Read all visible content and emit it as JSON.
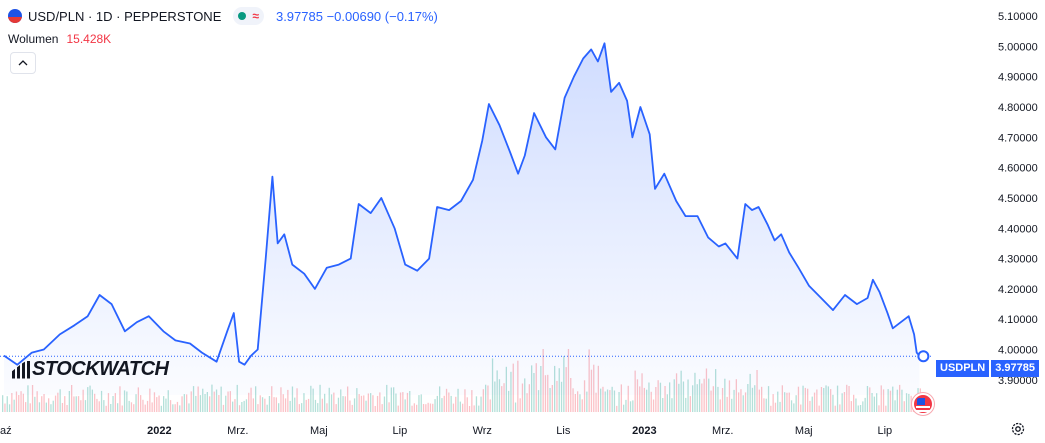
{
  "header": {
    "symbol_line": "USD/PLN · 1D · PEPPERSTONE",
    "approx_icon": "≈",
    "quote": "3.97785 −0.00690 (−0.17%)"
  },
  "volume": {
    "label": "Wolumen",
    "value": "15.428K"
  },
  "collapse_icon": "chevron-up-icon",
  "watermark": "STOCKWATCH",
  "price_tag": {
    "symbol": "USDPLN",
    "price": "3.97785"
  },
  "colors": {
    "line": "#2962ff",
    "fill": "#2962ff",
    "vol_up": "#089981",
    "vol_down": "#f23645",
    "axis_text": "#131722"
  },
  "chart_data": {
    "type": "area",
    "title": "",
    "xlabel": "",
    "ylabel": "",
    "ylim": [
      3.85,
      5.12
    ],
    "y_ticks": [
      "5.10000",
      "5.00000",
      "4.90000",
      "4.80000",
      "4.70000",
      "4.60000",
      "4.50000",
      "4.40000",
      "4.30000",
      "4.20000",
      "4.10000",
      "4.00000",
      "3.90000"
    ],
    "x_ticks": [
      "aź",
      "2022",
      "Mrz.",
      "Maj",
      "Lip",
      "Wrz",
      "Lis",
      "2023",
      "Mrz.",
      "Maj",
      "Lip"
    ],
    "x_tick_dates": [
      "2021-10-01",
      "2022-01-01",
      "2022-03-01",
      "2022-05-01",
      "2022-07-01",
      "2022-09-01",
      "2022-11-01",
      "2023-01-01",
      "2023-03-01",
      "2023-05-01",
      "2023-07-01"
    ],
    "series": [
      {
        "name": "USDPLN",
        "points": [
          [
            "2021-09-06",
            3.98
          ],
          [
            "2021-09-16",
            3.95
          ],
          [
            "2021-09-27",
            3.99
          ],
          [
            "2021-10-06",
            4.0
          ],
          [
            "2021-10-18",
            4.05
          ],
          [
            "2021-10-29",
            4.08
          ],
          [
            "2021-11-08",
            4.11
          ],
          [
            "2021-11-17",
            4.18
          ],
          [
            "2021-11-26",
            4.15
          ],
          [
            "2021-12-06",
            4.06
          ],
          [
            "2021-12-15",
            4.09
          ],
          [
            "2021-12-24",
            4.11
          ],
          [
            "2022-01-04",
            4.06
          ],
          [
            "2022-01-13",
            4.03
          ],
          [
            "2022-01-24",
            4.02
          ],
          [
            "2022-02-02",
            3.99
          ],
          [
            "2022-02-13",
            3.96
          ],
          [
            "2022-02-21",
            4.06
          ],
          [
            "2022-02-26",
            4.12
          ],
          [
            "2022-03-02",
            3.96
          ],
          [
            "2022-03-06",
            3.95
          ],
          [
            "2022-03-11",
            3.98
          ],
          [
            "2022-03-16",
            4.0
          ],
          [
            "2022-03-22",
            4.3
          ],
          [
            "2022-03-27",
            4.57
          ],
          [
            "2022-03-31",
            4.35
          ],
          [
            "2022-04-05",
            4.38
          ],
          [
            "2022-04-11",
            4.28
          ],
          [
            "2022-04-20",
            4.25
          ],
          [
            "2022-04-28",
            4.2
          ],
          [
            "2022-05-07",
            4.27
          ],
          [
            "2022-05-16",
            4.28
          ],
          [
            "2022-05-25",
            4.3
          ],
          [
            "2022-05-31",
            4.48
          ],
          [
            "2022-06-09",
            4.45
          ],
          [
            "2022-06-17",
            4.5
          ],
          [
            "2022-06-27",
            4.4
          ],
          [
            "2022-07-05",
            4.28
          ],
          [
            "2022-07-14",
            4.26
          ],
          [
            "2022-07-23",
            4.3
          ],
          [
            "2022-07-29",
            4.47
          ],
          [
            "2022-08-07",
            4.46
          ],
          [
            "2022-08-16",
            4.49
          ],
          [
            "2022-08-25",
            4.56
          ],
          [
            "2022-09-01",
            4.69
          ],
          [
            "2022-09-06",
            4.81
          ],
          [
            "2022-09-14",
            4.74
          ],
          [
            "2022-09-22",
            4.65
          ],
          [
            "2022-09-28",
            4.58
          ],
          [
            "2022-10-03",
            4.64
          ],
          [
            "2022-10-10",
            4.78
          ],
          [
            "2022-10-19",
            4.7
          ],
          [
            "2022-10-26",
            4.66
          ],
          [
            "2022-11-02",
            4.83
          ],
          [
            "2022-11-09",
            4.9
          ],
          [
            "2022-11-16",
            4.96
          ],
          [
            "2022-11-22",
            4.99
          ],
          [
            "2022-11-27",
            4.95
          ],
          [
            "2022-12-02",
            5.01
          ],
          [
            "2022-12-07",
            4.85
          ],
          [
            "2022-12-13",
            4.88
          ],
          [
            "2022-12-19",
            4.82
          ],
          [
            "2022-12-23",
            4.7
          ],
          [
            "2022-12-29",
            4.8
          ],
          [
            "2023-01-05",
            4.71
          ],
          [
            "2023-01-09",
            4.53
          ],
          [
            "2023-01-16",
            4.58
          ],
          [
            "2023-01-25",
            4.49
          ],
          [
            "2023-02-01",
            4.44
          ],
          [
            "2023-02-10",
            4.44
          ],
          [
            "2023-02-18",
            4.37
          ],
          [
            "2023-02-26",
            4.34
          ],
          [
            "2023-03-03",
            4.35
          ],
          [
            "2023-03-12",
            4.3
          ],
          [
            "2023-03-18",
            4.48
          ],
          [
            "2023-03-23",
            4.46
          ],
          [
            "2023-03-28",
            4.47
          ],
          [
            "2023-04-04",
            4.41
          ],
          [
            "2023-04-09",
            4.36
          ],
          [
            "2023-04-14",
            4.38
          ],
          [
            "2023-04-20",
            4.32
          ],
          [
            "2023-04-27",
            4.27
          ],
          [
            "2023-05-05",
            4.21
          ],
          [
            "2023-05-14",
            4.17
          ],
          [
            "2023-05-23",
            4.13
          ],
          [
            "2023-06-01",
            4.18
          ],
          [
            "2023-06-10",
            4.15
          ],
          [
            "2023-06-18",
            4.17
          ],
          [
            "2023-06-22",
            4.23
          ],
          [
            "2023-06-27",
            4.19
          ],
          [
            "2023-07-03",
            4.12
          ],
          [
            "2023-07-07",
            4.07
          ],
          [
            "2023-07-13",
            4.09
          ],
          [
            "2023-07-19",
            4.11
          ],
          [
            "2023-07-23",
            4.05
          ],
          [
            "2023-07-25",
            3.99
          ],
          [
            "2023-07-27",
            3.98
          ]
        ]
      }
    ],
    "last_value": 3.97785,
    "grid": false,
    "legend": "none"
  }
}
